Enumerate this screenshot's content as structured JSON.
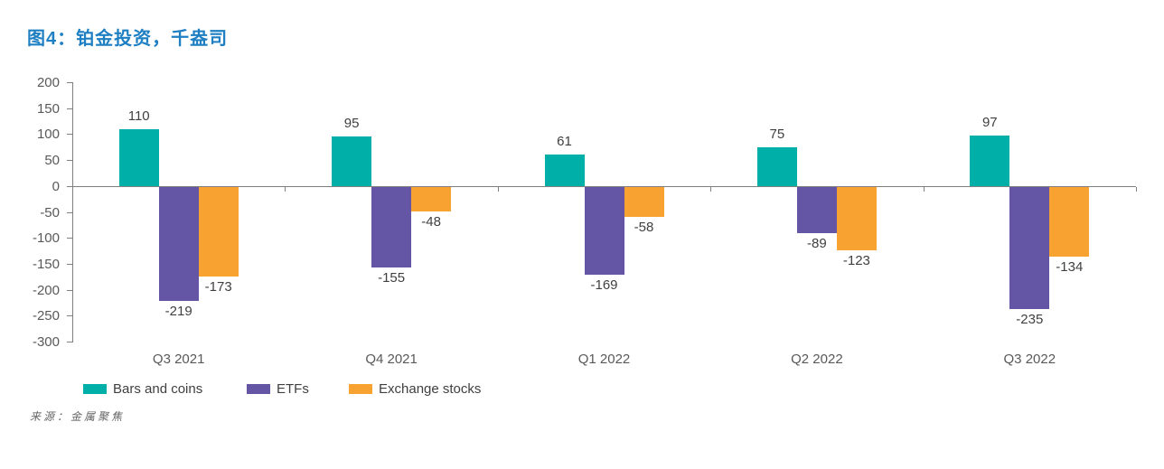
{
  "title": "图4：铂金投资，千盎司",
  "source": "来源：金属聚焦",
  "colors": {
    "title_blue": "#1e7fc2",
    "axis_gray": "#7f7f7f",
    "tick_label_gray": "#595959",
    "value_label_gray": "#404040",
    "teal": "#00b0a8",
    "purple": "#6456a4",
    "orange": "#f8a231"
  },
  "chart_data": {
    "type": "bar",
    "title": "图4：铂金投资，千盎司",
    "categories": [
      "Q3 2021",
      "Q4 2021",
      "Q1 2022",
      "Q2 2022",
      "Q3 2022"
    ],
    "series": [
      {
        "name": "Bars and coins",
        "color": "#00b0a8",
        "values": [
          110,
          95,
          61,
          75,
          97
        ]
      },
      {
        "name": "ETFs",
        "color": "#6456a4",
        "values": [
          -219,
          -155,
          -169,
          -89,
          -235
        ]
      },
      {
        "name": "Exchange stocks",
        "color": "#f8a231",
        "values": [
          -173,
          -48,
          -58,
          -123,
          -134
        ]
      }
    ],
    "ylim": [
      -300,
      200
    ],
    "ytick_step": 50,
    "grid": false,
    "legend_position": "bottom-left",
    "data_labels": true,
    "xlabel": "",
    "ylabel": ""
  }
}
